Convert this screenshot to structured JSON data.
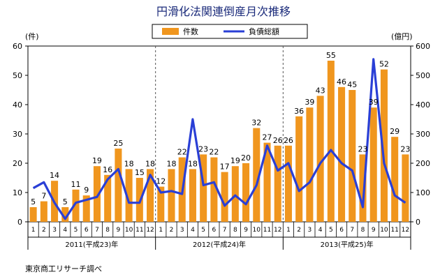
{
  "chart_data": {
    "type": "bar",
    "title": "円滑化法関連倒産月次推移",
    "y_left_unit": "(件)",
    "y_right_unit": "(億円)",
    "ylim_left": [
      0,
      60
    ],
    "ylim_right": [
      0,
      600
    ],
    "yticks_left": [
      "0",
      "10",
      "20",
      "30",
      "40",
      "50",
      "60"
    ],
    "yticks_right": [
      "0",
      "100",
      "200",
      "300",
      "400",
      "500",
      "600"
    ],
    "months": [
      "1",
      "2",
      "3",
      "4",
      "5",
      "6",
      "7",
      "8",
      "9",
      "10",
      "11",
      "12",
      "1",
      "2",
      "3",
      "4",
      "5",
      "6",
      "7",
      "8",
      "9",
      "10",
      "11",
      "12",
      "1",
      "2",
      "3",
      "4",
      "5",
      "6",
      "7",
      "8",
      "9",
      "10",
      "11",
      "12"
    ],
    "year_groups": [
      {
        "label": "2011(平成23)年",
        "start": 0,
        "end": 11
      },
      {
        "label": "2012(平成24)年",
        "start": 12,
        "end": 23
      },
      {
        "label": "2013(平成25)年",
        "start": 24,
        "end": 35
      }
    ],
    "series": [
      {
        "name": "件数",
        "type": "bar",
        "axis": "left",
        "color": "#f0961e",
        "values": [
          5,
          7,
          14,
          5,
          11,
          9,
          19,
          16,
          25,
          18,
          15,
          18,
          12,
          18,
          22,
          18,
          23,
          22,
          17,
          19,
          20,
          32,
          27,
          26,
          26,
          36,
          39,
          43,
          55,
          46,
          45,
          23,
          39,
          52,
          29,
          23
        ]
      },
      {
        "name": "負債総額",
        "type": "line",
        "axis": "right",
        "color": "#2a3fd6",
        "values": [
          115,
          135,
          65,
          10,
          65,
          75,
          85,
          145,
          180,
          65,
          65,
          160,
          100,
          105,
          95,
          350,
          125,
          135,
          55,
          90,
          60,
          125,
          260,
          175,
          200,
          105,
          135,
          200,
          245,
          200,
          175,
          50,
          555,
          200,
          90,
          65
        ]
      }
    ],
    "legend_position": "top-center",
    "grid": false
  },
  "source_note": "東京商工リサーチ調べ"
}
